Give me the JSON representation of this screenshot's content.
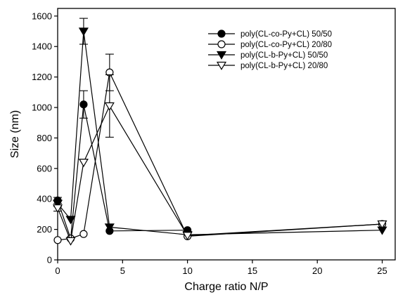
{
  "chart_data": {
    "type": "line",
    "title": "",
    "xlabel": "Charge ratio N/P",
    "ylabel": "Size (nm)",
    "xlim": [
      0,
      26
    ],
    "ylim": [
      0,
      1650
    ],
    "xticks": [
      0,
      5,
      10,
      15,
      20,
      25
    ],
    "yticks": [
      0,
      200,
      400,
      600,
      800,
      1000,
      1200,
      1400,
      1600
    ],
    "grid": false,
    "legend_position": "top-right",
    "series": [
      {
        "name": "poly(CL-co-Py+CL) 50/50",
        "marker": "filled-circle",
        "points": [
          {
            "x": 0,
            "y": 390,
            "err": 20
          },
          {
            "x": 1,
            "y": 140,
            "err": 0
          },
          {
            "x": 2,
            "y": 1020,
            "err": 90
          },
          {
            "x": 4,
            "y": 190,
            "err": 0
          },
          {
            "x": 10,
            "y": 195,
            "err": 0
          }
        ]
      },
      {
        "name": "poly(CL-co-Py+CL) 20/80",
        "marker": "open-circle",
        "points": [
          {
            "x": 0,
            "y": 130,
            "err": 0
          },
          {
            "x": 1,
            "y": 140,
            "err": 0
          },
          {
            "x": 2,
            "y": 170,
            "err": 0
          },
          {
            "x": 4,
            "y": 1230,
            "err": 120
          },
          {
            "x": 10,
            "y": 155,
            "err": 0
          },
          {
            "x": 25,
            "y": 235,
            "err": 0
          }
        ]
      },
      {
        "name": "poly(CL-b-Py+CL) 50/50",
        "marker": "filled-triangle-down",
        "points": [
          {
            "x": 0,
            "y": 370,
            "err": 20
          },
          {
            "x": 1,
            "y": 265,
            "err": 0
          },
          {
            "x": 2,
            "y": 1500,
            "err": 85
          },
          {
            "x": 4,
            "y": 215,
            "err": 0
          },
          {
            "x": 10,
            "y": 165,
            "err": 0
          },
          {
            "x": 25,
            "y": 195,
            "err": 0
          }
        ]
      },
      {
        "name": "poly(CL-b-Py+CL) 20/80",
        "marker": "open-triangle-down",
        "points": [
          {
            "x": 0,
            "y": 340,
            "err": 20
          },
          {
            "x": 1,
            "y": 125,
            "err": 0
          },
          {
            "x": 2,
            "y": 640,
            "err": 0
          },
          {
            "x": 4,
            "y": 1010,
            "err": 205
          },
          {
            "x": 10,
            "y": 160,
            "err": 0
          },
          {
            "x": 25,
            "y": 235,
            "err": 0
          }
        ]
      }
    ]
  }
}
